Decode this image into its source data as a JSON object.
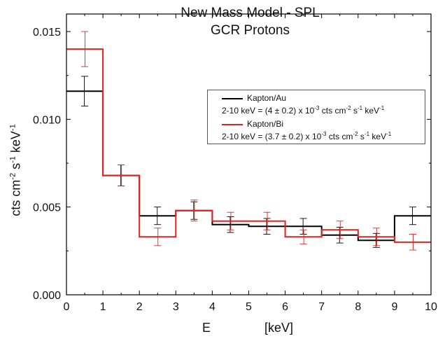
{
  "title_line1": "New Mass Model - SPL",
  "title_line2": "GCR Protons",
  "chart_data": {
    "type": "step",
    "xlabel_symbol": "E",
    "xlabel_unit": "[keV]",
    "ylabel_parts": {
      "base": "cts cm",
      "exp1": "-2",
      "mid": " s",
      "exp2": "-1",
      "end": " keV",
      "exp3": "-1"
    },
    "xlim": [
      0,
      10
    ],
    "ylim": [
      0.0,
      0.016
    ],
    "x_ticks": [
      0,
      1,
      2,
      3,
      4,
      5,
      6,
      7,
      8,
      9,
      10
    ],
    "y_ticks": [
      0.0,
      0.005,
      0.01,
      0.015
    ],
    "y_tick_labels": [
      "0.000",
      "0.005",
      "0.010",
      "0.015"
    ],
    "bin_edges": [
      0,
      1,
      2,
      3,
      4,
      5,
      6,
      7,
      8,
      9,
      10
    ],
    "series": [
      {
        "name": "Kapton/Au",
        "color": "#000000",
        "x_centers": [
          0.5,
          1.5,
          2.5,
          3.5,
          4.5,
          5.5,
          6.5,
          7.5,
          8.5,
          9.5
        ],
        "values": [
          0.0116,
          0.0068,
          0.0045,
          0.0048,
          0.004,
          0.0039,
          0.0039,
          0.0034,
          0.0031,
          0.0045
        ],
        "errors": [
          0.00085,
          0.0006,
          0.0005,
          0.0005,
          0.00045,
          0.00045,
          0.00045,
          0.00045,
          0.0004,
          0.0005
        ]
      },
      {
        "name": "Kapton/Bi",
        "color": "#e8201c",
        "x_centers": [
          0.5,
          1.5,
          2.5,
          3.5,
          4.5,
          5.5,
          6.5,
          7.5,
          8.5,
          9.5
        ],
        "values": [
          0.014,
          0.0068,
          0.0033,
          0.0048,
          0.0042,
          0.0042,
          0.0033,
          0.0037,
          0.0033,
          0.003
        ],
        "errors": [
          0.001,
          0.0006,
          0.0005,
          0.0006,
          0.0005,
          0.0005,
          0.0004,
          0.0005,
          0.0005,
          0.00045
        ]
      }
    ],
    "legend": {
      "position": "top-right",
      "entries": [
        {
          "label": "Kapton/Au",
          "color": "#000000",
          "note_a": "2-10 keV = (4 ± 0.2) x 10",
          "note_exp1": "-3",
          "note_b": " cts cm",
          "note_exp2": "-2",
          "note_c": " s",
          "note_exp3": "-1",
          "note_d": " keV",
          "note_exp4": "-1"
        },
        {
          "label": "Kapton/Bi",
          "color": "#e8201c",
          "note_a": "2-10 keV = (3.7 ± 0.2) x 10",
          "note_exp1": "-3",
          "note_b": " cts cm",
          "note_exp2": "-2",
          "note_c": " s",
          "note_exp3": "-1",
          "note_d": " keV",
          "note_exp4": "-1"
        }
      ]
    }
  }
}
